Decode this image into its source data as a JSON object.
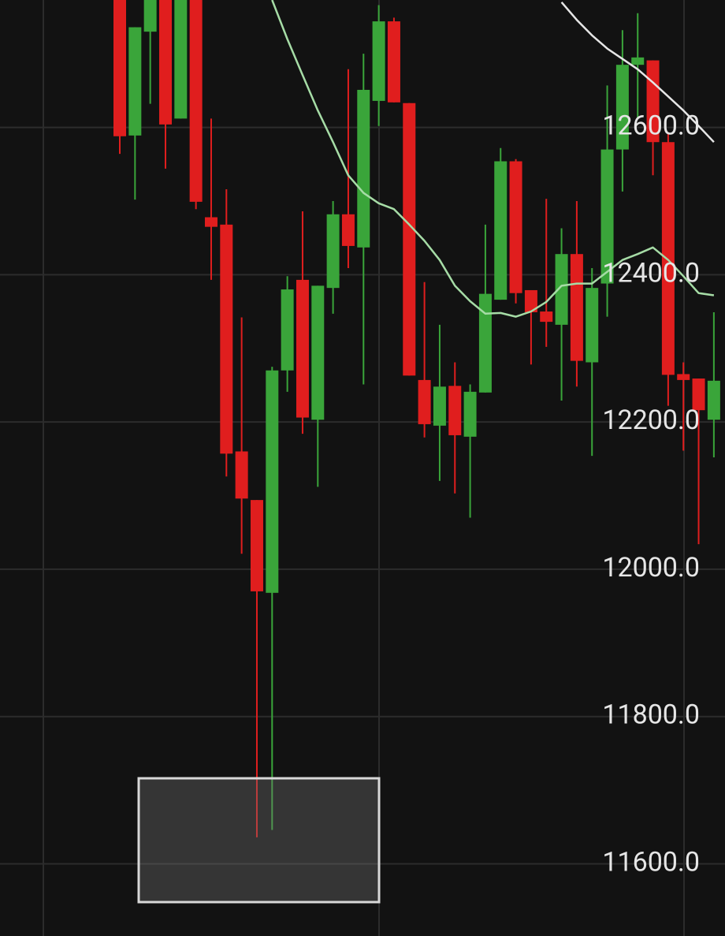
{
  "chart_data": {
    "type": "candlestick",
    "ylim": [
      11502,
      12773
    ],
    "yticks": [
      {
        "value": 12600,
        "label": "12600.0"
      },
      {
        "value": 12400,
        "label": "12400.0"
      },
      {
        "value": 12200,
        "label": "12200.0"
      },
      {
        "value": 12000,
        "label": "12000.0"
      },
      {
        "value": 11800,
        "label": "11800.0"
      },
      {
        "value": 11600,
        "label": "11600.0"
      }
    ],
    "grid": true,
    "up_color": "#3aa53a",
    "down_color": "#e01e1e",
    "open": [
      12773,
      12589,
      12730,
      12773,
      12612,
      12773,
      12478,
      12468,
      12160,
      12094,
      11968,
      12270,
      12393,
      12203,
      12382,
      12482,
      12437,
      12636,
      12744,
      12633,
      12257,
      12195,
      12249,
      12180,
      12240,
      12366,
      12554,
      12379,
      12350,
      12332,
      12428,
      12281,
      12388,
      12570,
      12685,
      12691,
      12580,
      12265,
      12259,
      12203
    ],
    "high": [
      12773,
      12736,
      12773,
      12773,
      12773,
      12773,
      12612,
      12516,
      12342,
      12094,
      12275,
      12398,
      12486,
      12385,
      12500,
      12679,
      12700,
      12766,
      12749,
      12633,
      12390,
      12332,
      12281,
      12251,
      12468,
      12572,
      12557,
      12379,
      12503,
      12463,
      12500,
      12409,
      12657,
      12732,
      12755,
      12691,
      12591,
      12281,
      12259,
      12349
    ],
    "low": [
      12564,
      12502,
      12632,
      12544,
      12612,
      12489,
      12393,
      12126,
      12021,
      11636,
      11646,
      12241,
      12184,
      12112,
      12347,
      12409,
      12251,
      12602,
      12634,
      12263,
      12179,
      12120,
      12103,
      12070,
      12240,
      12366,
      12361,
      12278,
      12302,
      12229,
      12248,
      12154,
      12343,
      12513,
      12612,
      12535,
      12222,
      12161,
      12034,
      12152
    ],
    "close": [
      12588,
      12736,
      12773,
      12604,
      12773,
      12499,
      12465,
      12157,
      12096,
      11970,
      12270,
      12380,
      12206,
      12385,
      12482,
      12439,
      12651,
      12744,
      12634,
      12263,
      12197,
      12248,
      12182,
      12241,
      12374,
      12554,
      12375,
      12349,
      12336,
      12428,
      12283,
      12382,
      12570,
      12685,
      12695,
      12580,
      12264,
      12257,
      12216,
      12256
    ],
    "lines": [
      {
        "color": "#a6dca6",
        "values": [
          null,
          null,
          null,
          null,
          null,
          null,
          null,
          null,
          null,
          null,
          12773,
          12720,
          12671,
          12623,
          12580,
          12535,
          12511,
          12497,
          12489,
          12468,
          12446,
          12420,
          12385,
          12364,
          12347,
          12348,
          12343,
          12350,
          12363,
          12385,
          12388,
          12388,
          12404,
          12420,
          12428,
          12437,
          12420,
          12398,
          12375,
          12372
        ]
      },
      {
        "color": "#e6e6e6",
        "values": [
          null,
          null,
          null,
          null,
          null,
          null,
          null,
          null,
          null,
          null,
          null,
          null,
          null,
          null,
          null,
          null,
          null,
          null,
          null,
          null,
          null,
          null,
          null,
          null,
          null,
          null,
          null,
          null,
          null,
          12770,
          12746,
          12725,
          12707,
          12693,
          12679,
          12661,
          12642,
          12623,
          12602,
          12580
        ]
      }
    ]
  }
}
